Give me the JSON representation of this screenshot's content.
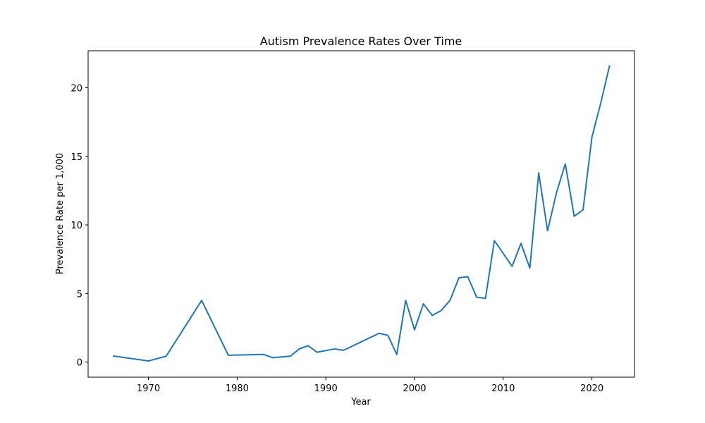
{
  "chart_data": {
    "type": "line",
    "title": "Autism Prevalence Rates Over Time",
    "xlabel": "Year",
    "ylabel": "Prevalence Rate per 1,000",
    "xlim": [
      1963.2,
      2024.8
    ],
    "ylim": [
      -1.1,
      22.7
    ],
    "xticks": [
      1970,
      1980,
      1990,
      2000,
      2010,
      2020
    ],
    "yticks": [
      0,
      5,
      10,
      15,
      20
    ],
    "grid": false,
    "series": [
      {
        "color": "#1f77b4",
        "x": [
          1966,
          1970,
          1972,
          1976,
          1979,
          1983,
          1984,
          1986,
          1987,
          1988,
          1989,
          1991,
          1992,
          1996,
          1997,
          1998,
          1999,
          2000,
          2001,
          2002,
          2003,
          2004,
          2005,
          2006,
          2007,
          2008,
          2009,
          2011,
          2012,
          2013,
          2014,
          2015,
          2016,
          2017,
          2018,
          2019,
          2020,
          2021,
          2022
        ],
        "y": [
          0.45,
          0.08,
          0.43,
          4.5,
          0.5,
          0.56,
          0.32,
          0.43,
          0.96,
          1.2,
          0.72,
          0.96,
          0.86,
          2.1,
          1.95,
          0.55,
          4.5,
          2.35,
          4.25,
          3.4,
          3.76,
          4.5,
          6.14,
          6.23,
          4.73,
          4.65,
          8.86,
          6.98,
          8.66,
          6.85,
          13.8,
          9.57,
          12.35,
          14.45,
          10.63,
          11.1,
          16.4,
          18.9,
          21.65
        ]
      }
    ]
  }
}
